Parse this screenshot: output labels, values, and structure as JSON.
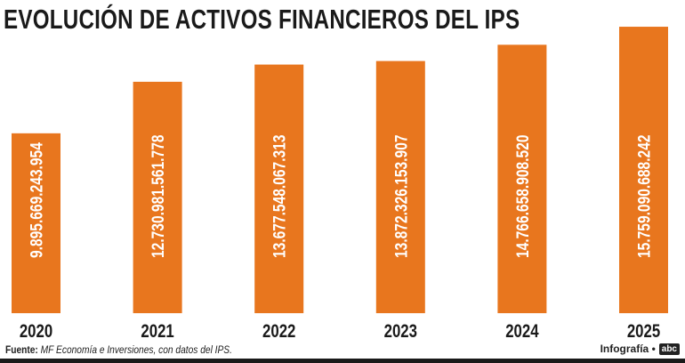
{
  "chart_data": {
    "type": "bar",
    "title": "EVOLUCIÓN DE ACTIVOS FINANCIEROS DEL IPS",
    "categories": [
      "2020",
      "2021",
      "2022",
      "2023",
      "2024",
      "2025"
    ],
    "values": [
      9895669243954,
      12730981561778,
      13677548067313,
      13872326153907,
      14766658908520,
      15759090688242
    ],
    "labels": [
      "9.895.669.243.954",
      "12.730.981.561.778",
      "13.677.548.067.313",
      "13.872.326.153.907",
      "14.766.658.908.520",
      "15.759.090.688.242"
    ],
    "xlabel": "",
    "ylabel": "",
    "ylim": [
      0,
      17230000000000
    ],
    "grid": false,
    "bar_color": "#E8761E"
  },
  "footer": {
    "source_label": "Fuente:",
    "source_text": "MF Economía e Inversiones, con datos del IPS.",
    "credit": "Infografía •",
    "logo": "abc"
  }
}
